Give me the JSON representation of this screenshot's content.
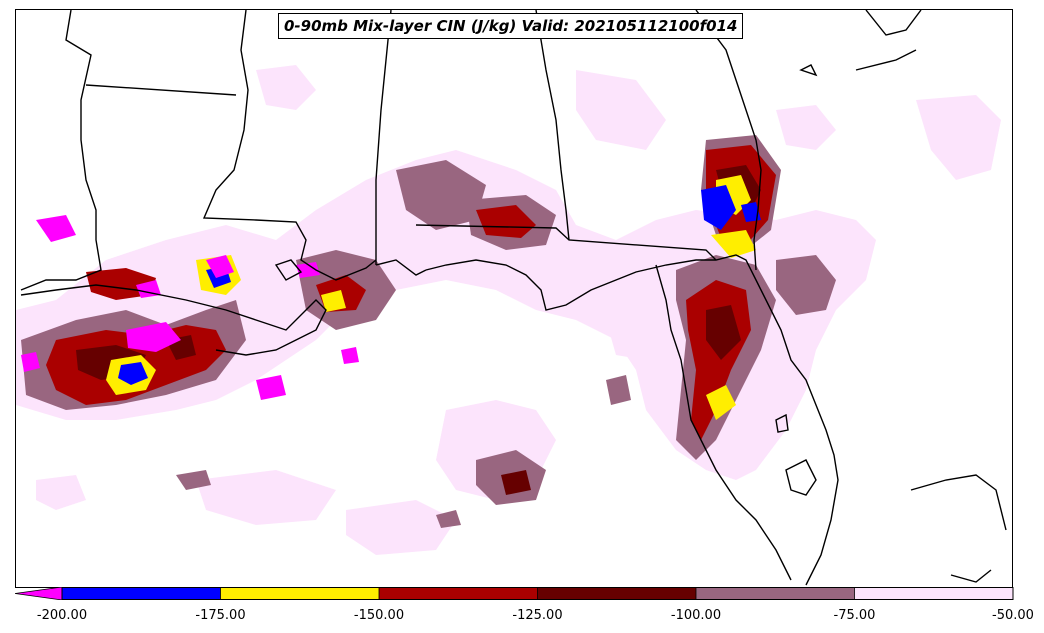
{
  "title": "0-90mb Mix-layer CIN (J/kg) Valid: 202105112100f014",
  "colorbar": {
    "extend_color": "#ff00ff",
    "segments": [
      {
        "from": -200,
        "to": -175,
        "color": "#0000ff"
      },
      {
        "from": -175,
        "to": -150,
        "color": "#ffee00"
      },
      {
        "from": -150,
        "to": -125,
        "color": "#aa0000"
      },
      {
        "from": -125,
        "to": -100,
        "color": "#660000"
      },
      {
        "from": -100,
        "to": -75,
        "color": "#996680"
      },
      {
        "from": -75,
        "to": -50,
        "color": "#fce4fc"
      }
    ],
    "ticks": [
      "-200.00",
      "-175.00",
      "-150.00",
      "-125.00",
      "-100.00",
      "-75.00",
      "-50.00"
    ]
  }
}
